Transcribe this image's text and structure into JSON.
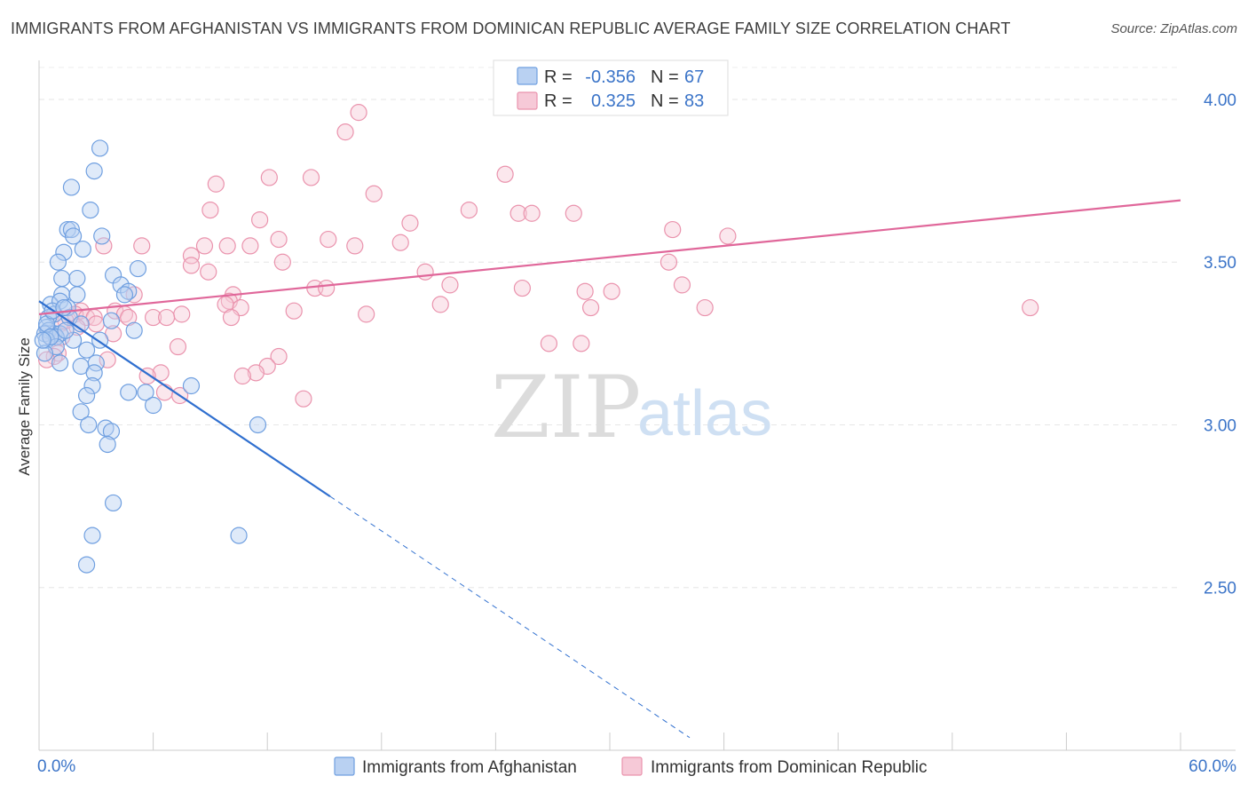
{
  "title": "IMMIGRANTS FROM AFGHANISTAN VS IMMIGRANTS FROM DOMINICAN REPUBLIC AVERAGE FAMILY SIZE CORRELATION CHART",
  "source": "Source: ZipAtlas.com",
  "watermark": {
    "zip": "ZIP",
    "atlas": "atlas"
  },
  "chart_data": {
    "type": "scatter",
    "xlabel": "",
    "ylabel": "Average Family Size",
    "xlim": [
      0,
      60
    ],
    "ylim": [
      2.0,
      4.12
    ],
    "x_tick_labels": [
      "0.0%",
      "60.0%"
    ],
    "y_ticks": [
      2.5,
      3.0,
      3.5,
      4.0
    ],
    "y_tick_labels": [
      "2.50",
      "3.00",
      "3.50",
      "4.00"
    ],
    "grid": true,
    "legend": {
      "placement": "top-center",
      "rows": [
        {
          "r_label": "R = ",
          "r_value": "-0.356",
          "n_label": "N = ",
          "n_value": "67"
        },
        {
          "r_label": "R = ",
          "r_value": "0.325",
          "n_label": "N = ",
          "n_value": "83"
        }
      ]
    },
    "series": [
      {
        "name": "Immigrants from Afghanistan",
        "color": "#6f9fe0",
        "fill": "#b9d1f2",
        "trend_color": "#2f6fcf",
        "trend": {
          "x0": 0.0,
          "y0": 3.38,
          "x1": 15.3,
          "y1": 2.78,
          "dash_to_x": 34.2
        },
        "points": [
          [
            3.2,
            3.85
          ],
          [
            2.9,
            3.78
          ],
          [
            1.7,
            3.73
          ],
          [
            2.7,
            3.66
          ],
          [
            1.5,
            3.6
          ],
          [
            1.7,
            3.6
          ],
          [
            1.8,
            3.58
          ],
          [
            3.3,
            3.58
          ],
          [
            2.3,
            3.54
          ],
          [
            1.3,
            3.53
          ],
          [
            1.0,
            3.5
          ],
          [
            5.2,
            3.48
          ],
          [
            3.9,
            3.46
          ],
          [
            1.2,
            3.45
          ],
          [
            2.0,
            3.45
          ],
          [
            4.3,
            3.43
          ],
          [
            4.7,
            3.41
          ],
          [
            1.2,
            3.4
          ],
          [
            2.0,
            3.4
          ],
          [
            4.5,
            3.4
          ],
          [
            0.6,
            3.37
          ],
          [
            1.1,
            3.38
          ],
          [
            1.5,
            3.36
          ],
          [
            0.8,
            3.34
          ],
          [
            1.6,
            3.33
          ],
          [
            0.5,
            3.33
          ],
          [
            2.2,
            3.31
          ],
          [
            3.8,
            3.32
          ],
          [
            0.4,
            3.3
          ],
          [
            0.5,
            3.29
          ],
          [
            0.8,
            3.28
          ],
          [
            1.1,
            3.28
          ],
          [
            0.3,
            3.28
          ],
          [
            0.9,
            3.27
          ],
          [
            1.8,
            3.26
          ],
          [
            5.0,
            3.29
          ],
          [
            3.2,
            3.26
          ],
          [
            0.4,
            3.26
          ],
          [
            0.9,
            3.24
          ],
          [
            2.5,
            3.23
          ],
          [
            0.3,
            3.22
          ],
          [
            1.1,
            3.19
          ],
          [
            2.2,
            3.18
          ],
          [
            3.0,
            3.19
          ],
          [
            2.9,
            3.16
          ],
          [
            8.0,
            3.12
          ],
          [
            2.8,
            3.12
          ],
          [
            2.5,
            3.09
          ],
          [
            4.7,
            3.1
          ],
          [
            5.6,
            3.1
          ],
          [
            6.0,
            3.06
          ],
          [
            2.2,
            3.04
          ],
          [
            2.6,
            3.0
          ],
          [
            3.5,
            2.99
          ],
          [
            3.8,
            2.98
          ],
          [
            11.5,
            3.0
          ],
          [
            3.6,
            2.94
          ],
          [
            3.9,
            2.76
          ],
          [
            2.8,
            2.66
          ],
          [
            10.5,
            2.66
          ],
          [
            2.5,
            2.57
          ],
          [
            0.4,
            3.31
          ],
          [
            0.7,
            3.35
          ],
          [
            1.3,
            3.36
          ],
          [
            0.6,
            3.27
          ],
          [
            1.4,
            3.29
          ],
          [
            0.2,
            3.26
          ]
        ]
      },
      {
        "name": "Immigrants from Dominican Republic",
        "color": "#ea93ad",
        "fill": "#f6c9d7",
        "trend_color": "#e0679a",
        "trend": {
          "x0": 0.0,
          "y0": 3.34,
          "x1": 60.0,
          "y1": 3.69
        },
        "points": [
          [
            16.8,
            3.96
          ],
          [
            16.1,
            3.9
          ],
          [
            24.5,
            3.77
          ],
          [
            12.1,
            3.76
          ],
          [
            14.3,
            3.76
          ],
          [
            9.3,
            3.74
          ],
          [
            17.6,
            3.71
          ],
          [
            9.0,
            3.66
          ],
          [
            22.6,
            3.66
          ],
          [
            25.2,
            3.65
          ],
          [
            25.9,
            3.65
          ],
          [
            28.1,
            3.65
          ],
          [
            11.6,
            3.63
          ],
          [
            19.5,
            3.62
          ],
          [
            33.3,
            3.6
          ],
          [
            36.2,
            3.58
          ],
          [
            12.6,
            3.57
          ],
          [
            15.2,
            3.57
          ],
          [
            19.0,
            3.56
          ],
          [
            5.4,
            3.55
          ],
          [
            8.7,
            3.55
          ],
          [
            9.9,
            3.55
          ],
          [
            11.1,
            3.55
          ],
          [
            16.6,
            3.55
          ],
          [
            3.4,
            3.55
          ],
          [
            8.0,
            3.52
          ],
          [
            12.8,
            3.5
          ],
          [
            8.0,
            3.49
          ],
          [
            33.1,
            3.5
          ],
          [
            8.9,
            3.47
          ],
          [
            20.3,
            3.47
          ],
          [
            21.6,
            3.43
          ],
          [
            33.8,
            3.43
          ],
          [
            14.5,
            3.42
          ],
          [
            15.1,
            3.42
          ],
          [
            25.4,
            3.42
          ],
          [
            28.7,
            3.41
          ],
          [
            30.1,
            3.41
          ],
          [
            10.2,
            3.4
          ],
          [
            5.0,
            3.4
          ],
          [
            10.0,
            3.38
          ],
          [
            9.8,
            3.37
          ],
          [
            21.1,
            3.37
          ],
          [
            10.6,
            3.36
          ],
          [
            13.4,
            3.35
          ],
          [
            29.0,
            3.36
          ],
          [
            35.0,
            3.36
          ],
          [
            52.1,
            3.36
          ],
          [
            4.0,
            3.35
          ],
          [
            2.2,
            3.35
          ],
          [
            7.5,
            3.34
          ],
          [
            4.5,
            3.34
          ],
          [
            1.9,
            3.34
          ],
          [
            2.5,
            3.33
          ],
          [
            2.9,
            3.33
          ],
          [
            4.7,
            3.33
          ],
          [
            6.0,
            3.33
          ],
          [
            6.7,
            3.33
          ],
          [
            10.1,
            3.33
          ],
          [
            17.2,
            3.34
          ],
          [
            1.4,
            3.32
          ],
          [
            3.0,
            3.31
          ],
          [
            1.1,
            3.31
          ],
          [
            2.0,
            3.3
          ],
          [
            3.9,
            3.28
          ],
          [
            1.2,
            3.27
          ],
          [
            0.6,
            3.27
          ],
          [
            26.8,
            3.25
          ],
          [
            28.5,
            3.25
          ],
          [
            7.3,
            3.24
          ],
          [
            1.0,
            3.22
          ],
          [
            0.8,
            3.21
          ],
          [
            12.6,
            3.21
          ],
          [
            3.6,
            3.2
          ],
          [
            0.4,
            3.2
          ],
          [
            12.0,
            3.18
          ],
          [
            6.4,
            3.16
          ],
          [
            11.4,
            3.16
          ],
          [
            5.7,
            3.15
          ],
          [
            10.7,
            3.15
          ],
          [
            6.6,
            3.1
          ],
          [
            7.4,
            3.09
          ],
          [
            13.9,
            3.08
          ]
        ]
      }
    ]
  }
}
